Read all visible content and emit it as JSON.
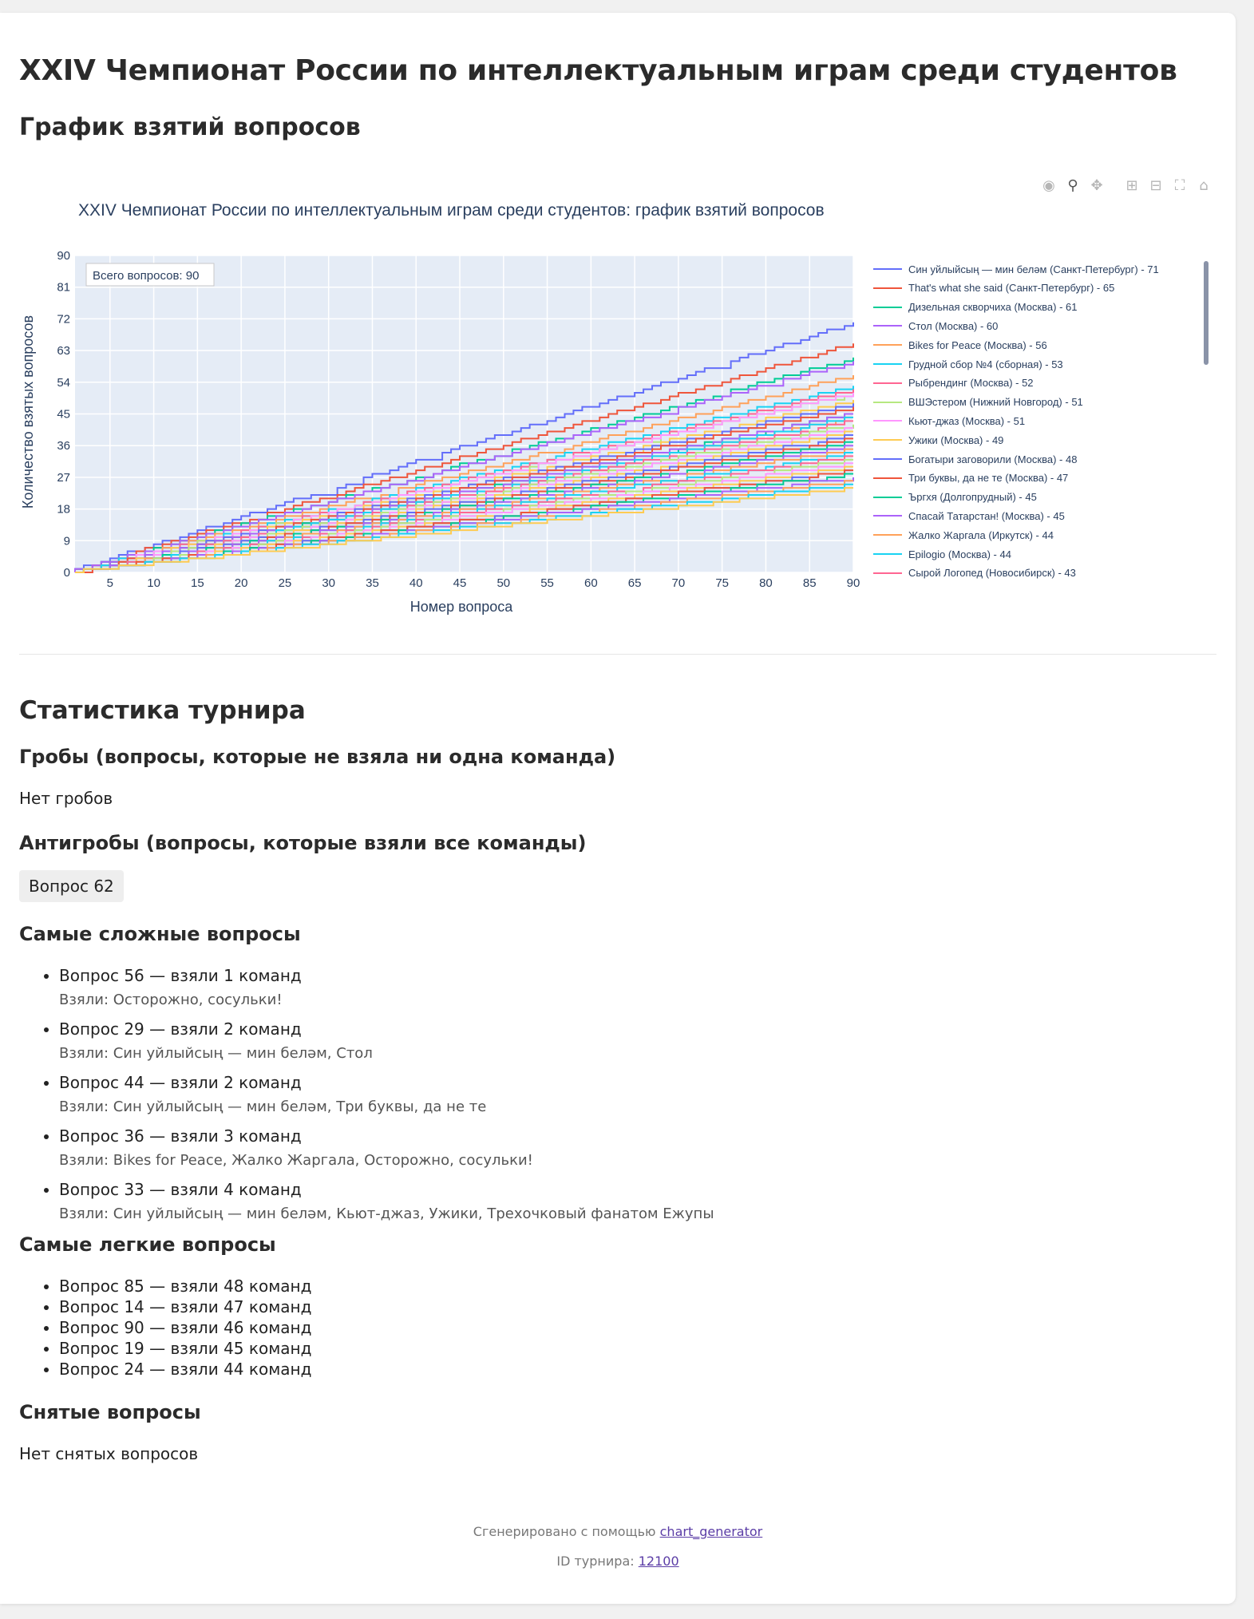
{
  "page": {
    "title": "XXIV Чемпионат России по интеллектуальным играм среди студентов",
    "chart_heading": "График взятий вопросов"
  },
  "modebar": [
    "camera-icon",
    "zoom-icon",
    "pan-icon",
    "zoom-in-icon",
    "zoom-out-icon",
    "autoscale-icon",
    "reset-axes-icon"
  ],
  "chart_data": {
    "type": "line",
    "title": "XXIV Чемпионат России по интеллектуальным играм среди студентов: график взятий вопросов",
    "xlabel": "Номер вопроса",
    "ylabel": "Количество взятых вопросов",
    "annotation": "Всего вопросов: 90",
    "xlim": [
      1,
      90
    ],
    "ylim": [
      0,
      90
    ],
    "xticks": [
      5,
      10,
      15,
      20,
      25,
      30,
      35,
      40,
      45,
      50,
      55,
      60,
      65,
      70,
      75,
      80,
      85,
      90
    ],
    "yticks": [
      0,
      9,
      18,
      27,
      36,
      45,
      54,
      63,
      72,
      81,
      90
    ],
    "grid": true,
    "legend_position": "right",
    "series": [
      {
        "name": "Син уйлыйсың — мин беләм (Санкт-Петербург) - 71",
        "final": 71,
        "color": "#636efa"
      },
      {
        "name": "That's what she said (Санкт-Петербург) - 65",
        "final": 65,
        "color": "#ef553b"
      },
      {
        "name": "Дизельная скворчиха (Москва) - 61",
        "final": 61,
        "color": "#00cc96"
      },
      {
        "name": "Стол (Москва) - 60",
        "final": 60,
        "color": "#ab63fa"
      },
      {
        "name": "Bikes for Peace (Москва) - 56",
        "final": 56,
        "color": "#ffa15a"
      },
      {
        "name": "Грудной сбор №4 (сборная) - 53",
        "final": 53,
        "color": "#19d3f3"
      },
      {
        "name": "Рыбрендинг (Москва) - 52",
        "final": 52,
        "color": "#ff6692"
      },
      {
        "name": "ВШЭстером (Нижний Новгород) - 51",
        "final": 51,
        "color": "#b6e880"
      },
      {
        "name": "Кьют-джаз (Москва) - 51",
        "final": 51,
        "color": "#ff97ff"
      },
      {
        "name": "Ужики (Москва) - 49",
        "final": 49,
        "color": "#fecb52"
      },
      {
        "name": "Богатыри заговорили (Москва) - 48",
        "final": 48,
        "color": "#636efa"
      },
      {
        "name": "Три буквы, да не те (Москва) - 47",
        "final": 47,
        "color": "#ef553b"
      },
      {
        "name": "Ъргхя (Долгопрудный) - 45",
        "final": 45,
        "color": "#00cc96"
      },
      {
        "name": "Спасай Татарстан! (Москва) - 45",
        "final": 45,
        "color": "#ab63fa"
      },
      {
        "name": "Жалко Жаргала (Иркутск) - 44",
        "final": 44,
        "color": "#ffa15a"
      },
      {
        "name": "Epilogio (Москва) - 44",
        "final": 44,
        "color": "#19d3f3"
      },
      {
        "name": "Сырой Логопед (Новосибирск) - 43",
        "final": 43,
        "color": "#ff6692"
      },
      {
        "name": "",
        "final": 42,
        "color": "#b6e880"
      },
      {
        "name": "",
        "final": 41,
        "color": "#ff97ff"
      },
      {
        "name": "",
        "final": 40,
        "color": "#fecb52"
      },
      {
        "name": "",
        "final": 39,
        "color": "#636efa"
      },
      {
        "name": "",
        "final": 38,
        "color": "#ef553b"
      },
      {
        "name": "",
        "final": 37,
        "color": "#00cc96"
      },
      {
        "name": "",
        "final": 36,
        "color": "#ab63fa"
      },
      {
        "name": "",
        "final": 35,
        "color": "#ffa15a"
      },
      {
        "name": "",
        "final": 34,
        "color": "#19d3f3"
      },
      {
        "name": "",
        "final": 33,
        "color": "#ff6692"
      },
      {
        "name": "",
        "final": 32,
        "color": "#b6e880"
      },
      {
        "name": "",
        "final": 31,
        "color": "#ff97ff"
      },
      {
        "name": "",
        "final": 30,
        "color": "#fecb52"
      },
      {
        "name": "",
        "final": 29,
        "color": "#636efa"
      },
      {
        "name": "",
        "final": 29,
        "color": "#ef553b"
      },
      {
        "name": "",
        "final": 28,
        "color": "#00cc96"
      },
      {
        "name": "",
        "final": 27,
        "color": "#ab63fa"
      },
      {
        "name": "",
        "final": 26,
        "color": "#ffa15a"
      },
      {
        "name": "",
        "final": 25,
        "color": "#19d3f3"
      },
      {
        "name": "",
        "final": 24,
        "color": "#fecb52"
      }
    ]
  },
  "stats": {
    "heading": "Статистика турнира",
    "graves_heading": "Гробы (вопросы, которые не взяла ни одна команда)",
    "graves_text": "Нет гробов",
    "antigraves_heading": "Антигробы (вопросы, которые взяли все команды)",
    "antigraves_chip": "Вопрос 62",
    "hardest_heading": "Самые сложные вопросы",
    "hardest": [
      {
        "title": "Вопрос 56 — взяли 1 команд",
        "who": "Взяли: Осторожно, сосульки!"
      },
      {
        "title": "Вопрос 29 — взяли 2 команд",
        "who": "Взяли: Син уйлыйсың — мин беләм, Стол"
      },
      {
        "title": "Вопрос 44 — взяли 2 команд",
        "who": "Взяли: Син уйлыйсың — мин беләм, Три буквы, да не те"
      },
      {
        "title": "Вопрос 36 — взяли 3 команд",
        "who": "Взяли: Bikes for Peace, Жалко Жаргала, Осторожно, сосульки!"
      },
      {
        "title": "Вопрос 33 — взяли 4 команд",
        "who": "Взяли: Син уйлыйсың — мин беләм, Кьют-джаз, Ужики, Трехочковый фанатом Ежупы"
      }
    ],
    "easiest_heading": "Самые легкие вопросы",
    "easiest": [
      "Вопрос 85 — взяли 48 команд",
      "Вопрос 14 — взяли 47 команд",
      "Вопрос 90 — взяли 46 команд",
      "Вопрос 19 — взяли 45 команд",
      "Вопрос 24 — взяли 44 команд"
    ],
    "removed_heading": "Снятые вопросы",
    "removed_text": "Нет снятых вопросов"
  },
  "footer": {
    "generated_prefix": "Сгенерировано с помощью",
    "generated_link": "chart_generator",
    "id_prefix": "ID турнира:",
    "id_link": "12100"
  }
}
